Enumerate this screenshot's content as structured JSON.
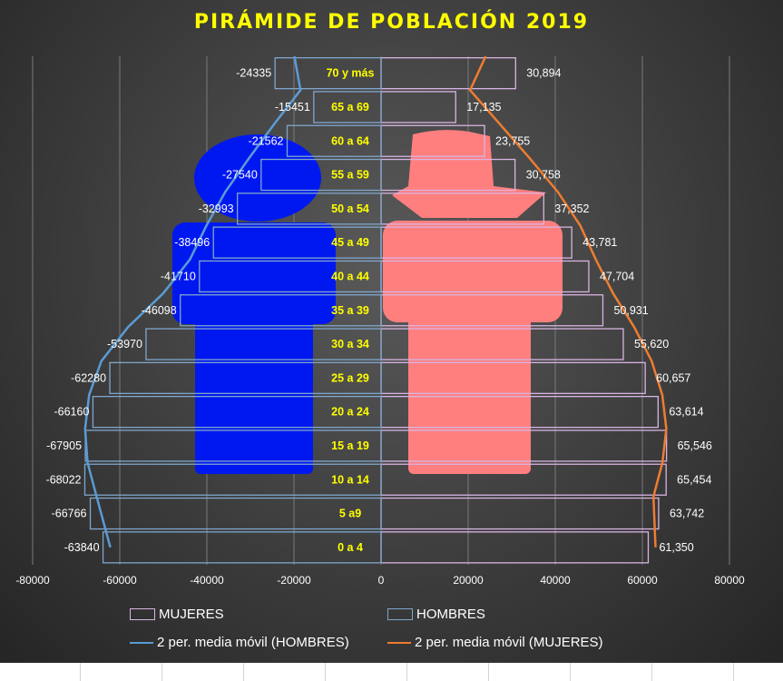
{
  "chart_data": {
    "type": "bar",
    "orientation": "horizontal",
    "title": "PIRÁMIDE DE POBLACIÓN  2019",
    "categories": [
      "0 a 4",
      "5 a9",
      "10 a 14",
      "15 a 19",
      "20 a 24",
      "25 a 29",
      "30 a 34",
      "35 a 39",
      "40 a 44",
      "45 a 49",
      "50 a 54",
      "55 a 59",
      "60 a 64",
      "65 a 69",
      "70 y más"
    ],
    "series": [
      {
        "name": "MUJERES",
        "values": [
          61350,
          63742,
          65454,
          65546,
          63614,
          60657,
          55620,
          50931,
          47704,
          43781,
          37352,
          30758,
          23755,
          17135,
          30894
        ],
        "labels": [
          "61,350",
          "63,742",
          "65,454",
          "65,546",
          "63,614",
          "60,657",
          "55,620",
          "50,931",
          "47,704",
          "43,781",
          "37,352",
          "30,758",
          "23,755",
          "17,135",
          "30,894"
        ]
      },
      {
        "name": "HOMBRES",
        "values": [
          -63840,
          -66766,
          -68022,
          -67905,
          -66160,
          -62280,
          -53970,
          -46098,
          -41710,
          -38496,
          -32993,
          -27540,
          -21562,
          -15451,
          -24335
        ],
        "labels": [
          "-63840",
          "-66766",
          "-68022",
          "-67905",
          "-66160",
          "-62280",
          "-53970",
          "-46098",
          "-41710",
          "-38496",
          "-32993",
          "-27540",
          "-21562",
          "-15451",
          "-24335"
        ]
      }
    ],
    "trendlines": [
      {
        "name": "2 per. media móvil (HOMBRES)",
        "color": "#5b9bd5",
        "of": "HOMBRES"
      },
      {
        "name": "2 per. media móvil (MUJERES)",
        "color": "#ed7d31",
        "of": "MUJERES"
      }
    ],
    "xlim": [
      -80000,
      80000
    ],
    "xticks": [
      "-80000",
      "-60000",
      "-40000",
      "-20000",
      "0",
      "20000",
      "40000",
      "60000",
      "80000"
    ],
    "grid": true,
    "legend_position": "bottom"
  },
  "colors": {
    "mujeres_border": "#d8b4e2",
    "hombres_border": "#7fa6cc",
    "category_label": "#ffff00",
    "man_figure": "#0018f0",
    "woman_figure": "#ff7f7f",
    "title": "#ffff00"
  },
  "legend": {
    "mujeres": "MUJERES",
    "hombres": "HOMBRES",
    "ma_hombres": "2 per. media móvil (HOMBRES)",
    "ma_mujeres": "2 per. media móvil (MUJERES)"
  },
  "icons": [
    "man-figure-icon",
    "woman-figure-icon"
  ]
}
